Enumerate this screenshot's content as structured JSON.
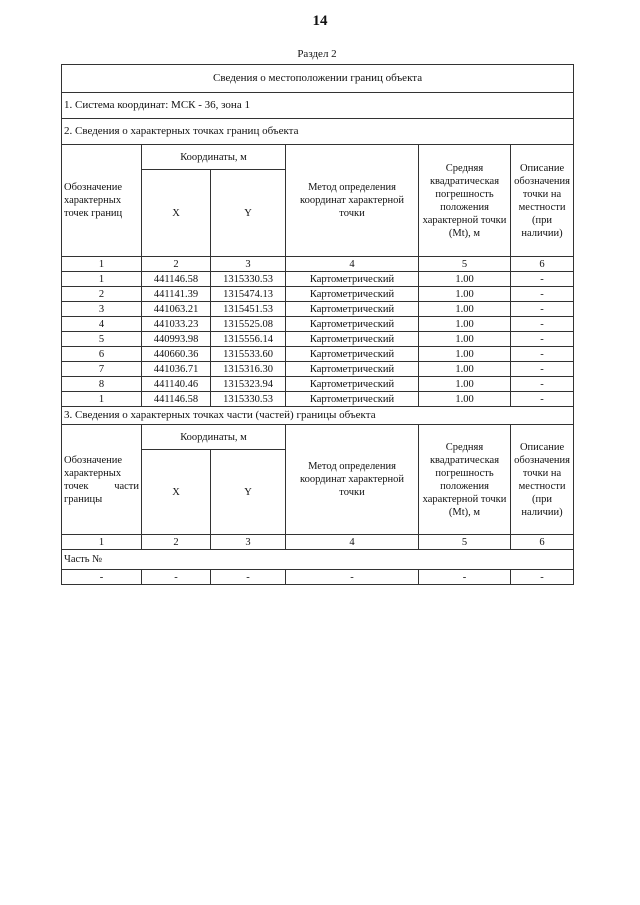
{
  "page_number": "14",
  "section_label": "Раздел 2",
  "title": "Сведения о местоположении границ объекта",
  "coord_system": "1. Система координат: МСК - 36, зона 1",
  "section2": {
    "title": "2. Сведения о характерных точках границ объекта",
    "headers": {
      "designation": "Обозначение характерных точек границ",
      "coords": "Координаты, м",
      "x": "X",
      "y": "Y",
      "method": "Метод определения координат характерной точки",
      "error": "Средняя квадратическая погрешность положения характерной точки (Mt), м",
      "description": "Описание обозначения точки на местности (при наличии)"
    },
    "col_numbers": [
      "1",
      "2",
      "3",
      "4",
      "5",
      "6"
    ],
    "rows": [
      [
        "1",
        "441146.58",
        "1315330.53",
        "Картометрический",
        "1.00",
        "-"
      ],
      [
        "2",
        "441141.39",
        "1315474.13",
        "Картометрический",
        "1.00",
        "-"
      ],
      [
        "3",
        "441063.21",
        "1315451.53",
        "Картометрический",
        "1.00",
        "-"
      ],
      [
        "4",
        "441033.23",
        "1315525.08",
        "Картометрический",
        "1.00",
        "-"
      ],
      [
        "5",
        "440993.98",
        "1315556.14",
        "Картометрический",
        "1.00",
        "-"
      ],
      [
        "6",
        "440660.36",
        "1315533.60",
        "Картометрический",
        "1.00",
        "-"
      ],
      [
        "7",
        "441036.71",
        "1315316.30",
        "Картометрический",
        "1.00",
        "-"
      ],
      [
        "8",
        "441140.46",
        "1315323.94",
        "Картометрический",
        "1.00",
        "-"
      ],
      [
        "1",
        "441146.58",
        "1315330.53",
        "Картометрический",
        "1.00",
        "-"
      ]
    ]
  },
  "section3": {
    "title": "3. Сведения о характерных точках части (частей) границы объекта",
    "headers": {
      "designation": "Обозначение характерных точек части границы",
      "coords": "Координаты, м",
      "x": "X",
      "y": "Y",
      "method": "Метод определения координат характерной точки",
      "error": "Средняя квадратическая погрешность положения характерной точки (Mt), м",
      "description": "Описание обозначения точки на местности (при наличии)"
    },
    "col_numbers": [
      "1",
      "2",
      "3",
      "4",
      "5",
      "6"
    ],
    "part_label": "Часть №",
    "rows": [
      [
        "-",
        "-",
        "-",
        "-",
        "-",
        "-"
      ]
    ]
  }
}
